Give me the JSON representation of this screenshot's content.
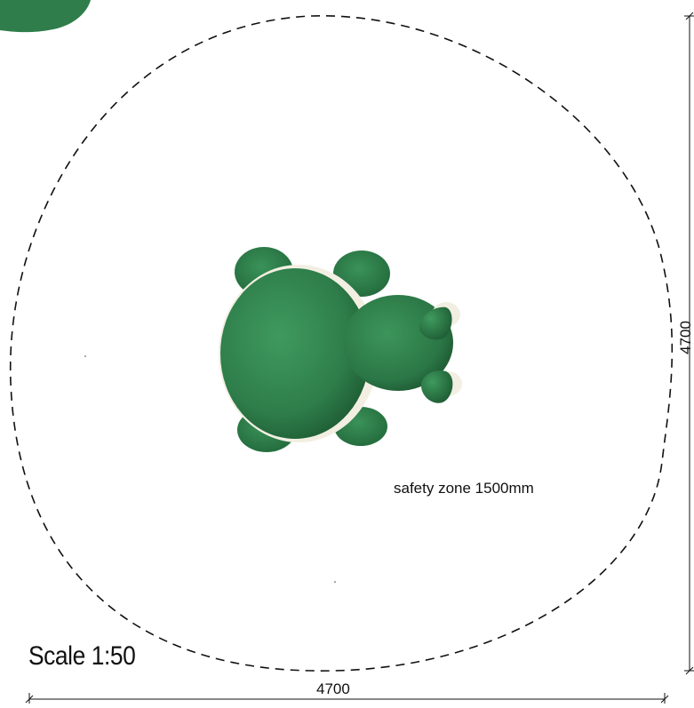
{
  "labels": {
    "safety_zone": "safety zone 1500mm",
    "scale": "Scale 1:50",
    "width_dimension": "4700",
    "height_dimension": "4700"
  },
  "colors": {
    "turtle_green": "#2e7d4a",
    "turtle_green_dark": "#1f5e35",
    "turtle_green_light": "#3f9a5e",
    "shell_rim": "#f2efe2",
    "dash_line": "#111111",
    "background": "#ffffff"
  },
  "icons": {
    "main_object": "turtle-playground-element",
    "partial_object": "green-playground-element-partial"
  }
}
